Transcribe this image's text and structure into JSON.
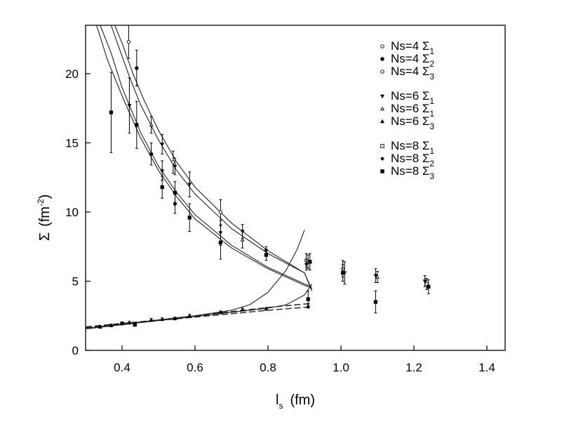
{
  "chart_data": {
    "type": "scatter",
    "title": "",
    "xlabel": {
      "main": "l",
      "sub": "s",
      "unit": "(fm)"
    },
    "ylabel": {
      "main": "Σ",
      "unit_pre": "(fm",
      "unit_sup": "-2",
      "unit_post": ")"
    },
    "xlim": [
      0.3,
      1.45
    ],
    "ylim": [
      0,
      23.5
    ],
    "xticks": [
      0.4,
      0.6,
      0.8,
      1.0,
      1.2,
      1.4
    ],
    "xtick_labels": [
      "0.4",
      "0.6",
      "0.8",
      "1.0",
      "1.2",
      "1.4"
    ],
    "yticks": [
      0,
      5,
      10,
      15,
      20
    ],
    "ytick_labels": [
      "0",
      "5",
      "10",
      "15",
      "20"
    ],
    "grid": false,
    "legend_position": "top-right",
    "legend_groups": [
      {
        "items": [
          {
            "prefix": "Ns=4 Σ",
            "sub": "1",
            "marker": "open-circle"
          },
          {
            "prefix": "Ns=4 Σ",
            "sub": "2",
            "marker": "filled-circle"
          },
          {
            "prefix": "Ns=4 Σ",
            "sub": "3",
            "marker": "open-circle"
          }
        ]
      },
      {
        "items": [
          {
            "prefix": "Ns=6 Σ",
            "sub": "1",
            "marker": "filled-triangle-down"
          },
          {
            "prefix": "Ns=6 Σ",
            "sub": "1",
            "marker": "open-triangle-up"
          },
          {
            "prefix": "Ns=6 Σ",
            "sub": "3",
            "marker": "filled-triangle-up"
          }
        ]
      },
      {
        "items": [
          {
            "prefix": "Ns=8 Σ",
            "sub": "1",
            "marker": "open-square"
          },
          {
            "prefix": "Ns=8 Σ",
            "sub": "2",
            "marker": "filled-diamond"
          },
          {
            "prefix": "Ns=8 Σ",
            "sub": "3",
            "marker": "filled-square"
          }
        ]
      }
    ],
    "points": [
      {
        "x": 0.37,
        "y": 17.2,
        "err": 2.9,
        "marker": "filled-square"
      },
      {
        "x": 0.418,
        "y": 22.3,
        "err": 1.2,
        "marker": "open-circle"
      },
      {
        "x": 0.42,
        "y": 17.7,
        "err": 2.0,
        "marker": "filled-triangle-down"
      },
      {
        "x": 0.44,
        "y": 20.4,
        "err": 1.3,
        "marker": "filled-circle"
      },
      {
        "x": 0.44,
        "y": 16.3,
        "err": 1.7,
        "marker": "filled-square"
      },
      {
        "x": 0.48,
        "y": 16.3,
        "err": 0.6,
        "marker": "open-triangle-up"
      },
      {
        "x": 0.48,
        "y": 14.2,
        "err": 0.8,
        "marker": "filled-circle"
      },
      {
        "x": 0.51,
        "y": 14.9,
        "err": 0.7,
        "marker": "filled-triangle-down"
      },
      {
        "x": 0.51,
        "y": 13.0,
        "err": 0.7,
        "marker": "filled-diamond"
      },
      {
        "x": 0.51,
        "y": 11.8,
        "err": 0.8,
        "marker": "filled-square"
      },
      {
        "x": 0.54,
        "y": 13.6,
        "err": 0.8,
        "marker": "open-circle"
      },
      {
        "x": 0.545,
        "y": 13.3,
        "err": 0.6,
        "marker": "filled-triangle-down"
      },
      {
        "x": 0.545,
        "y": 11.4,
        "err": 0.8,
        "marker": "filled-square"
      },
      {
        "x": 0.545,
        "y": 10.6,
        "err": 0.7,
        "marker": "filled-circle"
      },
      {
        "x": 0.585,
        "y": 12.0,
        "err": 0.9,
        "marker": "filled-triangle-down"
      },
      {
        "x": 0.585,
        "y": 9.6,
        "err": 1.0,
        "marker": "filled-square"
      },
      {
        "x": 0.67,
        "y": 10.0,
        "err": 0.9,
        "marker": "open-circle"
      },
      {
        "x": 0.67,
        "y": 8.5,
        "err": 0.9,
        "marker": "filled-triangle-down"
      },
      {
        "x": 0.67,
        "y": 7.8,
        "err": 1.2,
        "marker": "filled-square"
      },
      {
        "x": 0.73,
        "y": 8.6,
        "err": 0.5,
        "marker": "filled-triangle-down"
      },
      {
        "x": 0.73,
        "y": 8.0,
        "err": 0.6,
        "marker": "open-triangle-up"
      },
      {
        "x": 0.795,
        "y": 7.2,
        "err": 0.3,
        "marker": "filled-triangle-down"
      },
      {
        "x": 0.795,
        "y": 6.9,
        "err": 0.4,
        "marker": "filled-square"
      },
      {
        "x": 0.905,
        "y": 6.5,
        "err": 0.5,
        "marker": "open-circle"
      },
      {
        "x": 0.905,
        "y": 6.2,
        "err": 0.4,
        "marker": "filled-triangle-down"
      },
      {
        "x": 0.91,
        "y": 6.4,
        "err": 0.5,
        "marker": "open-triangle-up"
      },
      {
        "x": 0.915,
        "y": 6.4,
        "err": 0.6,
        "marker": "filled-square"
      },
      {
        "x": 0.91,
        "y": 3.7,
        "err": 0.6,
        "marker": "filled-square"
      },
      {
        "x": 1.005,
        "y": 5.9,
        "err": 0.6,
        "marker": "open-circle"
      },
      {
        "x": 1.01,
        "y": 5.6,
        "err": 0.8,
        "marker": "filled-triangle-down"
      },
      {
        "x": 1.005,
        "y": 5.6,
        "err": 0.6,
        "marker": "filled-square"
      },
      {
        "x": 1.095,
        "y": 5.4,
        "err": 0.5,
        "marker": "filled-triangle-down"
      },
      {
        "x": 1.1,
        "y": 5.3,
        "err": 0.4,
        "marker": "open-triangle-up"
      },
      {
        "x": 1.095,
        "y": 3.5,
        "err": 0.8,
        "marker": "filled-square"
      },
      {
        "x": 1.23,
        "y": 5.0,
        "err": 0.4,
        "marker": "filled-triangle-down"
      },
      {
        "x": 1.235,
        "y": 4.8,
        "err": 0.4,
        "marker": "open-circle"
      },
      {
        "x": 1.24,
        "y": 4.6,
        "err": 0.5,
        "marker": "filled-square"
      },
      {
        "x": 0.34,
        "y": 1.7,
        "err": 0.1,
        "marker": "filled-triangle-up"
      },
      {
        "x": 0.37,
        "y": 1.8,
        "err": 0.1,
        "marker": "filled-triangle-up"
      },
      {
        "x": 0.4,
        "y": 1.95,
        "err": 0.1,
        "marker": "filled-square"
      },
      {
        "x": 0.42,
        "y": 2.0,
        "err": 0.1,
        "marker": "filled-triangle-up"
      },
      {
        "x": 0.435,
        "y": 1.85,
        "err": 0.1,
        "marker": "filled-square"
      },
      {
        "x": 0.48,
        "y": 2.2,
        "err": 0.1,
        "marker": "filled-triangle-up"
      },
      {
        "x": 0.51,
        "y": 2.25,
        "err": 0.1,
        "marker": "filled-triangle-up"
      },
      {
        "x": 0.545,
        "y": 2.3,
        "err": 0.1,
        "marker": "filled-triangle-up"
      },
      {
        "x": 0.585,
        "y": 2.5,
        "err": 0.1,
        "marker": "filled-triangle-up"
      },
      {
        "x": 0.67,
        "y": 2.75,
        "err": 0.1,
        "marker": "filled-triangle-up"
      },
      {
        "x": 0.73,
        "y": 2.95,
        "err": 0.1,
        "marker": "filled-triangle-up"
      },
      {
        "x": 0.795,
        "y": 3.0,
        "err": 0.1,
        "marker": "filled-triangle-up"
      },
      {
        "x": 0.91,
        "y": 3.2,
        "err": 0.15,
        "marker": "filled-triangle-up"
      }
    ],
    "curves": [
      {
        "style": "solid",
        "x": [
          0.37,
          0.39,
          0.42,
          0.45,
          0.5,
          0.55,
          0.6,
          0.7,
          0.8,
          0.9,
          0.92
        ],
        "y": [
          23.5,
          22.0,
          19.8,
          17.8,
          15.2,
          13.0,
          11.3,
          8.8,
          7.0,
          5.6,
          4.4
        ]
      },
      {
        "style": "solid",
        "x": [
          0.38,
          0.4,
          0.43,
          0.46,
          0.5,
          0.55,
          0.6,
          0.7,
          0.8,
          0.9,
          0.92
        ],
        "y": [
          23.5,
          22.2,
          20.0,
          18.1,
          15.9,
          13.6,
          11.8,
          9.2,
          7.2,
          5.6,
          4.3
        ]
      },
      {
        "style": "solid",
        "x": [
          0.34,
          0.37,
          0.4,
          0.45,
          0.5,
          0.55,
          0.6,
          0.7,
          0.8,
          0.9,
          0.92
        ],
        "y": [
          23.5,
          21.5,
          19.0,
          15.8,
          13.3,
          11.4,
          9.8,
          7.6,
          6.0,
          4.8,
          4.6
        ]
      },
      {
        "style": "solid",
        "x": [
          0.33,
          0.36,
          0.4,
          0.45,
          0.5,
          0.55,
          0.6,
          0.7,
          0.8,
          0.9,
          0.92
        ],
        "y": [
          23.5,
          21.0,
          18.4,
          15.4,
          13.0,
          11.1,
          9.5,
          7.4,
          5.9,
          4.7,
          4.5
        ]
      },
      {
        "style": "solid",
        "x": [
          0.3,
          0.4,
          0.5,
          0.6,
          0.7,
          0.75,
          0.8,
          0.85,
          0.88,
          0.9
        ],
        "y": [
          1.6,
          1.9,
          2.2,
          2.5,
          2.9,
          3.3,
          4.2,
          5.8,
          7.3,
          8.7
        ]
      },
      {
        "style": "solid",
        "x": [
          0.3,
          0.4,
          0.5,
          0.6,
          0.7,
          0.8,
          0.85,
          0.9,
          0.92
        ],
        "y": [
          1.55,
          1.85,
          2.15,
          2.45,
          2.75,
          3.05,
          3.3,
          4.0,
          4.8
        ]
      },
      {
        "style": "dashed",
        "x": [
          0.3,
          0.4,
          0.5,
          0.6,
          0.7,
          0.8,
          0.92
        ],
        "y": [
          1.7,
          1.95,
          2.2,
          2.5,
          2.8,
          3.1,
          3.4
        ]
      },
      {
        "style": "dashed",
        "x": [
          0.3,
          0.4,
          0.5,
          0.6,
          0.7,
          0.8,
          0.92
        ],
        "y": [
          1.65,
          1.9,
          2.15,
          2.4,
          2.65,
          2.9,
          3.15
        ]
      }
    ]
  }
}
